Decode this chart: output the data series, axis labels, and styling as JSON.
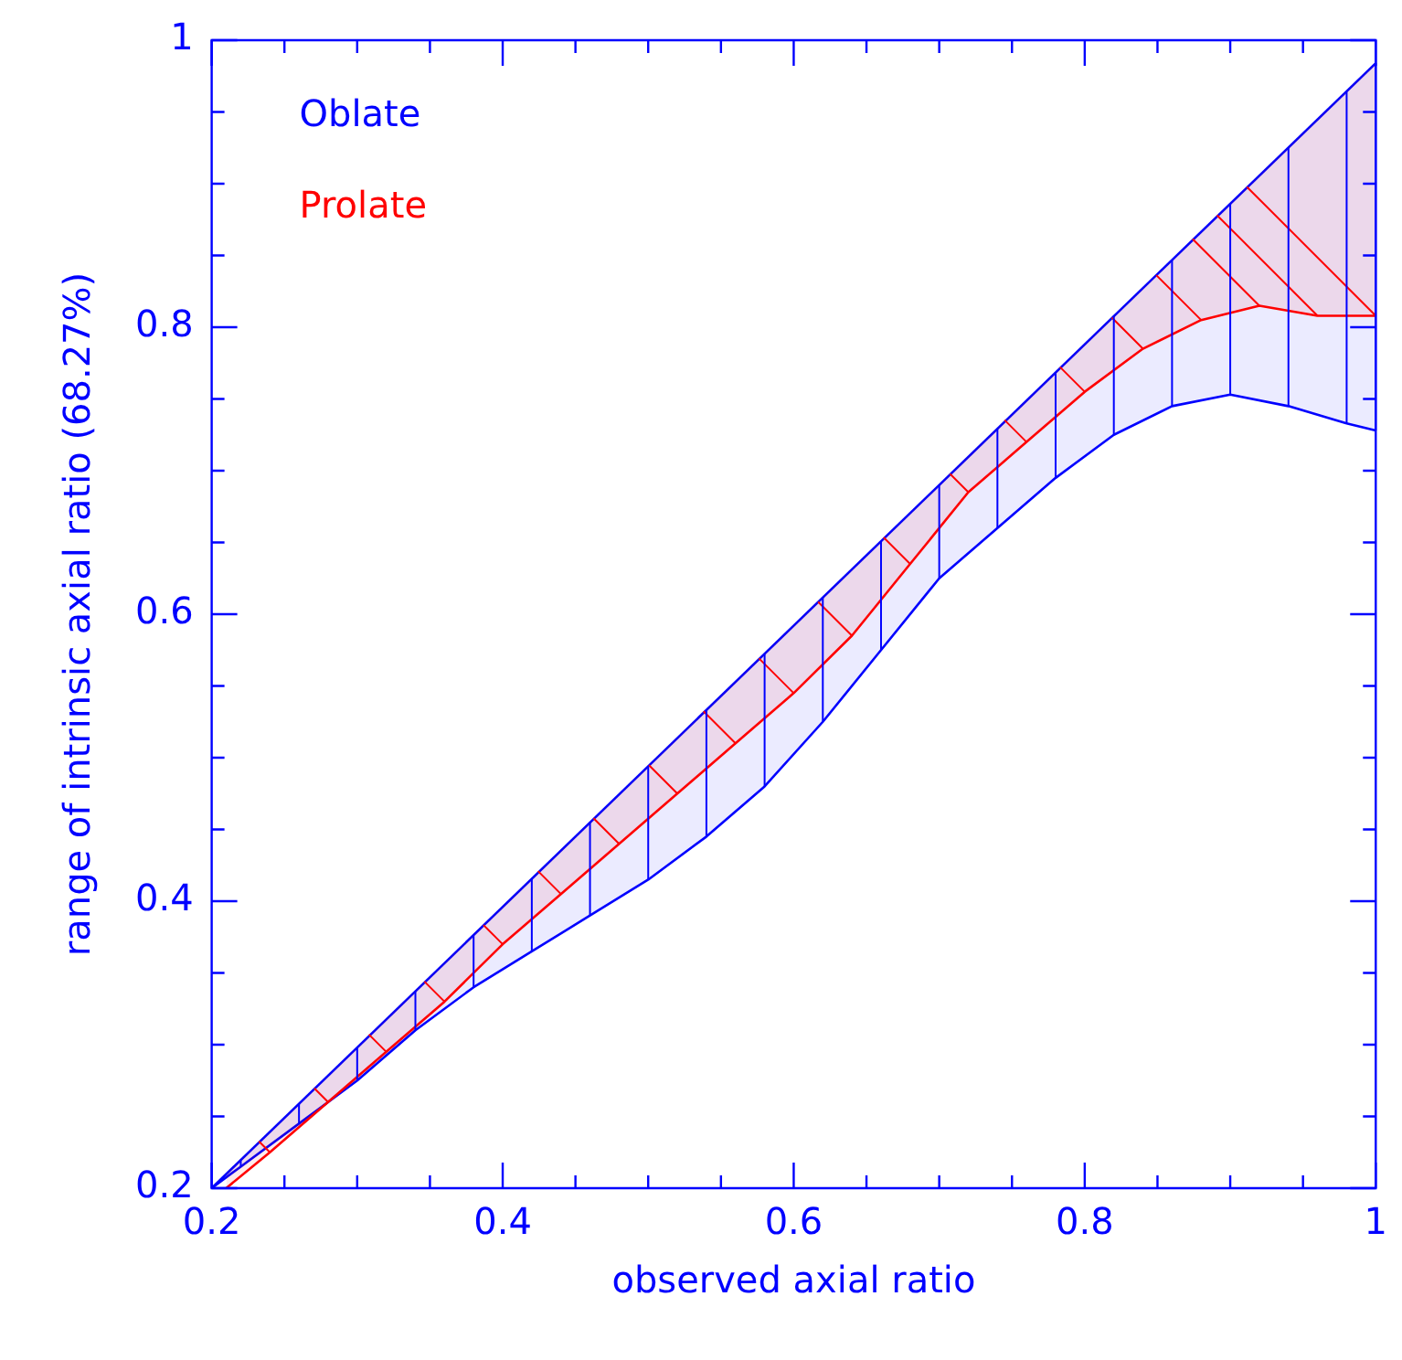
{
  "chart_data": {
    "type": "line",
    "xlabel": "observed axial ratio",
    "ylabel": "range of intrinsic axial ratio (68.27%)",
    "xlim": [
      0.2,
      1
    ],
    "ylim": [
      0.2,
      1
    ],
    "xticks": [
      0.2,
      {
        "value": 0.25,
        "label": null
      },
      {
        "value": 0.3,
        "label": null
      },
      {
        "value": 0.35,
        "label": null
      },
      0.4,
      {
        "value": 0.45,
        "label": null
      },
      {
        "value": 0.5,
        "label": null
      },
      {
        "value": 0.55,
        "label": null
      },
      0.6,
      {
        "value": 0.65,
        "label": null
      },
      {
        "value": 0.7,
        "label": null
      },
      {
        "value": 0.75,
        "label": null
      },
      0.8,
      {
        "value": 0.85,
        "label": null
      },
      {
        "value": 0.9,
        "label": null
      },
      {
        "value": 0.95,
        "label": null
      },
      1
    ],
    "yticks": [
      0.2,
      {
        "value": 0.25,
        "label": null
      },
      {
        "value": 0.3,
        "label": null
      },
      {
        "value": 0.35,
        "label": null
      },
      0.4,
      {
        "value": 0.45,
        "label": null
      },
      {
        "value": 0.5,
        "label": null
      },
      {
        "value": 0.55,
        "label": null
      },
      0.6,
      {
        "value": 0.65,
        "label": null
      },
      {
        "value": 0.7,
        "label": null
      },
      {
        "value": 0.75,
        "label": null
      },
      0.8,
      {
        "value": 0.85,
        "label": null
      },
      {
        "value": 0.9,
        "label": null
      },
      {
        "value": 0.95,
        "label": null
      },
      1
    ],
    "grid": false,
    "legend": "top left",
    "marker": "none",
    "line_style": "solid",
    "series": [
      {
        "name": "Prolate",
        "color": "#ff0000",
        "x": [
          0.21,
          0.24,
          0.28,
          0.32,
          0.36,
          0.4,
          0.44,
          0.48,
          0.52,
          0.56,
          0.6,
          0.64,
          0.68,
          0.72,
          0.76,
          0.8,
          0.84,
          0.88,
          0.92,
          0.96,
          1.0
        ],
        "values": [
          0.2,
          0.225,
          0.26,
          0.295,
          0.33,
          0.37,
          0.405,
          0.44,
          0.475,
          0.51,
          0.545,
          0.585,
          0.635,
          0.685,
          0.72,
          0.755,
          0.785,
          0.805,
          0.815,
          0.808,
          0.808
        ],
        "lower": [
          0.2,
          0.225,
          0.26,
          0.295,
          0.33,
          0.37,
          0.405,
          0.44,
          0.475,
          0.51,
          0.545,
          0.585,
          0.635,
          0.685,
          0.72,
          0.755,
          0.785,
          0.805,
          0.815,
          0.808,
          0.808
        ],
        "upper": [
          0.21,
          0.239,
          0.278,
          0.318,
          0.357,
          0.396,
          0.435,
          0.474,
          0.514,
          0.553,
          0.592,
          0.631,
          0.67,
          0.71,
          0.749,
          0.788,
          0.827,
          0.866,
          0.906,
          0.945,
          0.984
        ]
      },
      {
        "name": "Oblate",
        "color": "#0000ff",
        "x": [
          0.2,
          0.22,
          0.26,
          0.3,
          0.34,
          0.38,
          0.42,
          0.46,
          0.5,
          0.54,
          0.58,
          0.62,
          0.66,
          0.7,
          0.74,
          0.78,
          0.82,
          0.86,
          0.9,
          0.94,
          0.98,
          1.0
        ],
        "values": [
          0.2,
          0.215,
          0.245,
          0.275,
          0.31,
          0.34,
          0.365,
          0.39,
          0.415,
          0.445,
          0.48,
          0.525,
          0.575,
          0.625,
          0.66,
          0.695,
          0.725,
          0.745,
          0.753,
          0.745,
          0.733,
          0.728
        ],
        "lower": [
          0.2,
          0.215,
          0.245,
          0.275,
          0.31,
          0.34,
          0.365,
          0.39,
          0.415,
          0.445,
          0.48,
          0.525,
          0.575,
          0.625,
          0.66,
          0.695,
          0.725,
          0.745,
          0.753,
          0.745,
          0.733,
          0.728
        ],
        "upper": [
          0.2,
          0.22,
          0.259,
          0.298,
          0.337,
          0.376,
          0.416,
          0.455,
          0.494,
          0.533,
          0.572,
          0.612,
          0.651,
          0.69,
          0.729,
          0.768,
          0.808,
          0.847,
          0.886,
          0.925,
          0.964,
          0.984
        ]
      },
      {
        "color": "#0000ff",
        "x": [
          0.2,
          1.0
        ],
        "values": [
          0.2,
          0.984
        ]
      }
    ]
  }
}
